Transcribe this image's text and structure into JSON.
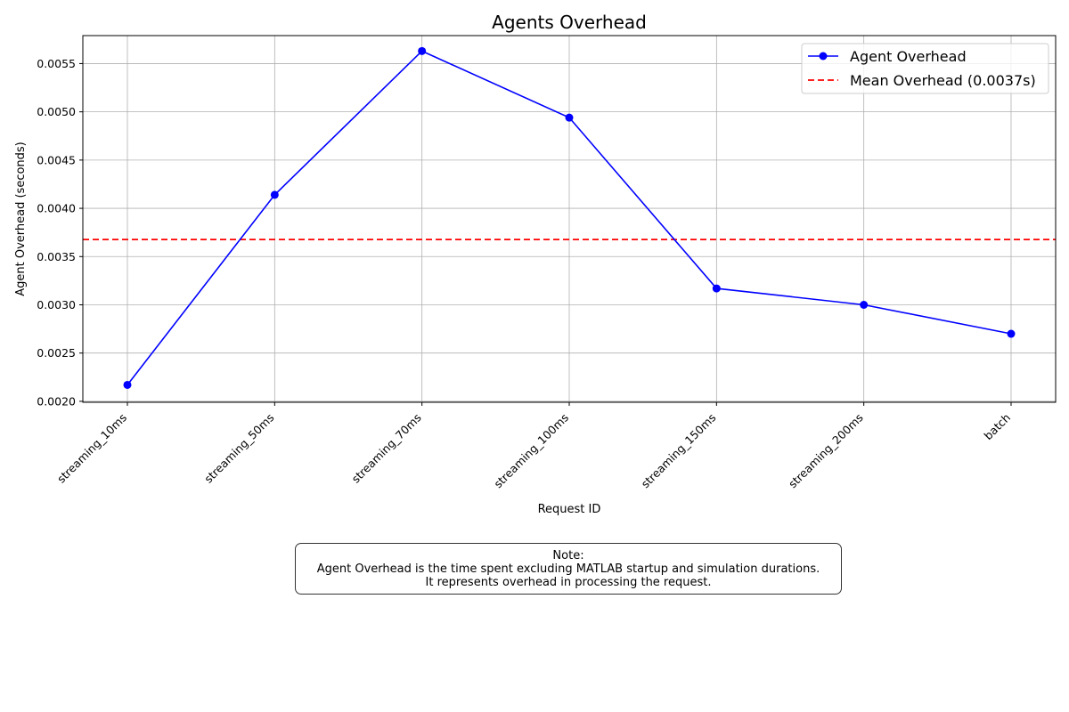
{
  "chart_data": {
    "type": "line",
    "title": "Agents Overhead",
    "xlabel": "Request ID",
    "ylabel": "Agent Overhead (seconds)",
    "categories": [
      "streaming_10ms",
      "streaming_50ms",
      "streaming_70ms",
      "streaming_100ms",
      "streaming_150ms",
      "streaming_200ms",
      "batch"
    ],
    "series": [
      {
        "name": "Agent Overhead",
        "color": "#0000ff",
        "marker": "circle",
        "values": [
          0.00217,
          0.00414,
          0.00563,
          0.00494,
          0.00317,
          0.003,
          0.0027
        ]
      }
    ],
    "reference_line": {
      "name": "Mean Overhead (0.0037s)",
      "value": 0.003677,
      "color": "#ff0000",
      "style": "dashed"
    },
    "ylim": [
      0.00199,
      0.00579
    ],
    "yticks": [
      0.002,
      0.0025,
      0.003,
      0.0035,
      0.004,
      0.0045,
      0.005,
      0.0055
    ],
    "ytick_labels": [
      "0.0020",
      "0.0025",
      "0.0030",
      "0.0035",
      "0.0040",
      "0.0045",
      "0.0050",
      "0.0055"
    ],
    "grid": true,
    "legend_position": "top-right",
    "x_tick_rotation": 45
  },
  "note": {
    "line1": "Note:",
    "line2": "Agent Overhead is the time spent excluding MATLAB startup and simulation durations.",
    "line3": "It represents overhead in processing the request."
  }
}
